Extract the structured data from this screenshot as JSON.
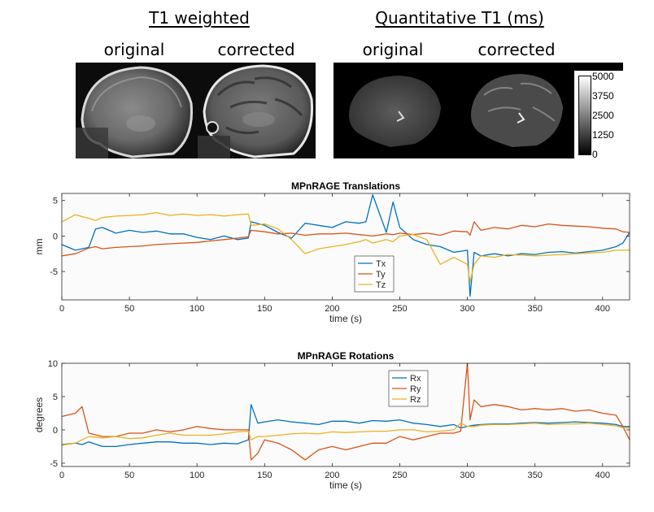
{
  "figure": {
    "left_group_title": "T1 weighted",
    "right_group_title": "Quantitative T1 (ms)",
    "left_original_label": "original",
    "left_corrected_label": "corrected",
    "right_original_label": "original",
    "right_corrected_label": "corrected",
    "colorbar_ticks": [
      "5000",
      "3750",
      "2500",
      "1250",
      "0"
    ],
    "colorbar_range": [
      0,
      5000
    ]
  },
  "chart_data": [
    {
      "type": "line",
      "title": "MPnRAGE Translations",
      "xlabel": "time (s)",
      "ylabel": "mm",
      "xlim": [
        0,
        420
      ],
      "ylim": [
        -9,
        6
      ],
      "xticks": [
        0,
        50,
        100,
        150,
        200,
        250,
        300,
        350,
        400
      ],
      "yticks": [
        -5,
        0,
        5
      ],
      "legend": "center",
      "grid": false,
      "x": [
        0,
        10,
        20,
        25,
        30,
        40,
        50,
        60,
        70,
        80,
        90,
        100,
        110,
        120,
        130,
        138,
        140,
        150,
        160,
        170,
        180,
        190,
        200,
        210,
        220,
        225,
        230,
        240,
        245,
        250,
        260,
        270,
        280,
        290,
        300,
        302,
        305,
        310,
        320,
        330,
        340,
        350,
        360,
        370,
        380,
        390,
        400,
        410,
        415,
        420
      ],
      "series": [
        {
          "name": "Tx",
          "color": "#0072BD",
          "values": [
            -1.2,
            -2.0,
            -1.6,
            1.0,
            1.2,
            0.4,
            0.8,
            0.5,
            0.7,
            0.3,
            0.3,
            -0.2,
            -0.5,
            0.0,
            -0.5,
            -0.3,
            2.0,
            1.5,
            0.5,
            -0.3,
            1.8,
            1.5,
            1.2,
            2.0,
            1.8,
            2.0,
            5.8,
            0.5,
            4.8,
            1.2,
            -0.5,
            -1.2,
            -1.5,
            -2.3,
            -2.0,
            -8.5,
            -2.3,
            -2.8,
            -2.5,
            -2.8,
            -2.5,
            -2.6,
            -2.3,
            -2.2,
            -2.4,
            -2.2,
            -2.0,
            -1.5,
            -1.0,
            0.5
          ]
        },
        {
          "name": "Ty",
          "color": "#D95319",
          "values": [
            -2.8,
            -2.5,
            -1.7,
            -1.5,
            -1.8,
            -1.6,
            -1.5,
            -1.4,
            -1.2,
            -1.1,
            -1.0,
            -0.9,
            -0.7,
            -0.5,
            -0.3,
            -0.1,
            0.8,
            0.6,
            0.3,
            0.4,
            0.1,
            0.3,
            0.3,
            0.4,
            0.2,
            0.1,
            0.0,
            0.3,
            0.2,
            0.4,
            0.2,
            0.4,
            0.1,
            0.7,
            0.6,
            0.1,
            2.0,
            0.8,
            1.2,
            1.0,
            1.5,
            1.3,
            1.7,
            1.5,
            1.4,
            1.3,
            1.1,
            1.0,
            0.6,
            0.5
          ]
        },
        {
          "name": "Tz",
          "color": "#EDB120",
          "values": [
            2.0,
            3.0,
            2.5,
            2.2,
            2.6,
            2.8,
            2.9,
            3.0,
            3.3,
            2.9,
            3.1,
            2.9,
            3.0,
            2.8,
            3.0,
            3.1,
            1.5,
            1.7,
            1.0,
            -0.5,
            -2.5,
            -1.8,
            -1.5,
            -1.2,
            -0.8,
            -0.5,
            -1.0,
            -0.5,
            -0.8,
            0.0,
            0.2,
            -0.5,
            -4.0,
            -3.0,
            -4.0,
            -6.5,
            -4.0,
            -2.8,
            -3.0,
            -2.6,
            -2.7,
            -2.8,
            -2.7,
            -2.6,
            -2.5,
            -2.4,
            -2.3,
            -2.0,
            -2.0,
            -2.0
          ]
        }
      ]
    },
    {
      "type": "line",
      "title": "MPnRAGE Rotations",
      "xlabel": "time (s)",
      "ylabel": "degrees",
      "xlim": [
        0,
        420
      ],
      "ylim": [
        -5.5,
        10
      ],
      "xticks": [
        0,
        50,
        100,
        150,
        200,
        250,
        300,
        350,
        400
      ],
      "yticks": [
        -5,
        0,
        5,
        10
      ],
      "legend": "top-center",
      "grid": false,
      "x": [
        0,
        10,
        15,
        20,
        30,
        40,
        50,
        60,
        70,
        80,
        90,
        100,
        110,
        120,
        130,
        138,
        140,
        145,
        150,
        160,
        170,
        180,
        190,
        200,
        210,
        220,
        230,
        240,
        250,
        260,
        270,
        280,
        290,
        295,
        300,
        302,
        305,
        310,
        320,
        330,
        340,
        350,
        360,
        370,
        380,
        390,
        400,
        410,
        415,
        420
      ],
      "series": [
        {
          "name": "Rx",
          "color": "#0072BD",
          "values": [
            -2.2,
            -2.0,
            -2.2,
            -1.8,
            -2.5,
            -2.5,
            -2.2,
            -2.0,
            -1.8,
            -1.8,
            -2.0,
            -2.0,
            -2.2,
            -2.0,
            -2.1,
            -1.5,
            3.8,
            1.0,
            1.2,
            1.5,
            1.2,
            1.0,
            0.8,
            1.3,
            1.3,
            1.0,
            1.4,
            1.3,
            1.5,
            1.0,
            0.8,
            0.5,
            0.8,
            0.3,
            0.5,
            0.6,
            0.7,
            0.8,
            0.9,
            0.9,
            1.0,
            1.1,
            1.0,
            1.1,
            1.2,
            1.1,
            1.0,
            0.8,
            0.5,
            0.5
          ]
        },
        {
          "name": "Ry",
          "color": "#D95319",
          "values": [
            2.0,
            2.5,
            3.5,
            -0.5,
            -1.0,
            -1.0,
            -0.5,
            -0.5,
            0.0,
            -0.3,
            0.0,
            0.5,
            0.2,
            0.0,
            0.0,
            0.0,
            -4.5,
            -3.5,
            -1.5,
            -2.0,
            -3.0,
            -4.5,
            -3.0,
            -2.5,
            -3.0,
            -2.5,
            -2.0,
            -2.0,
            -1.0,
            -1.5,
            -1.0,
            -0.5,
            -0.5,
            -0.2,
            10.0,
            1.5,
            4.5,
            3.5,
            3.8,
            3.5,
            3.0,
            3.2,
            3.0,
            3.2,
            2.8,
            3.0,
            2.5,
            2.2,
            0.5,
            -1.5
          ]
        },
        {
          "name": "Rz",
          "color": "#EDB120",
          "values": [
            -2.3,
            -2.0,
            -1.5,
            -1.0,
            -1.2,
            -1.0,
            -1.3,
            -1.2,
            -0.8,
            -0.5,
            -0.8,
            -0.8,
            -0.8,
            -0.6,
            -0.3,
            -0.2,
            -1.5,
            -1.0,
            -1.0,
            -0.8,
            -0.6,
            -0.5,
            -0.6,
            -0.3,
            -0.4,
            -0.3,
            -0.2,
            -0.2,
            0.0,
            0.0,
            -0.3,
            -0.2,
            0.0,
            1.0,
            0.5,
            0.5,
            0.5,
            0.7,
            0.8,
            0.8,
            0.9,
            1.0,
            0.8,
            0.9,
            0.9,
            1.0,
            0.8,
            0.6,
            0.3,
            0.3
          ]
        }
      ]
    }
  ]
}
